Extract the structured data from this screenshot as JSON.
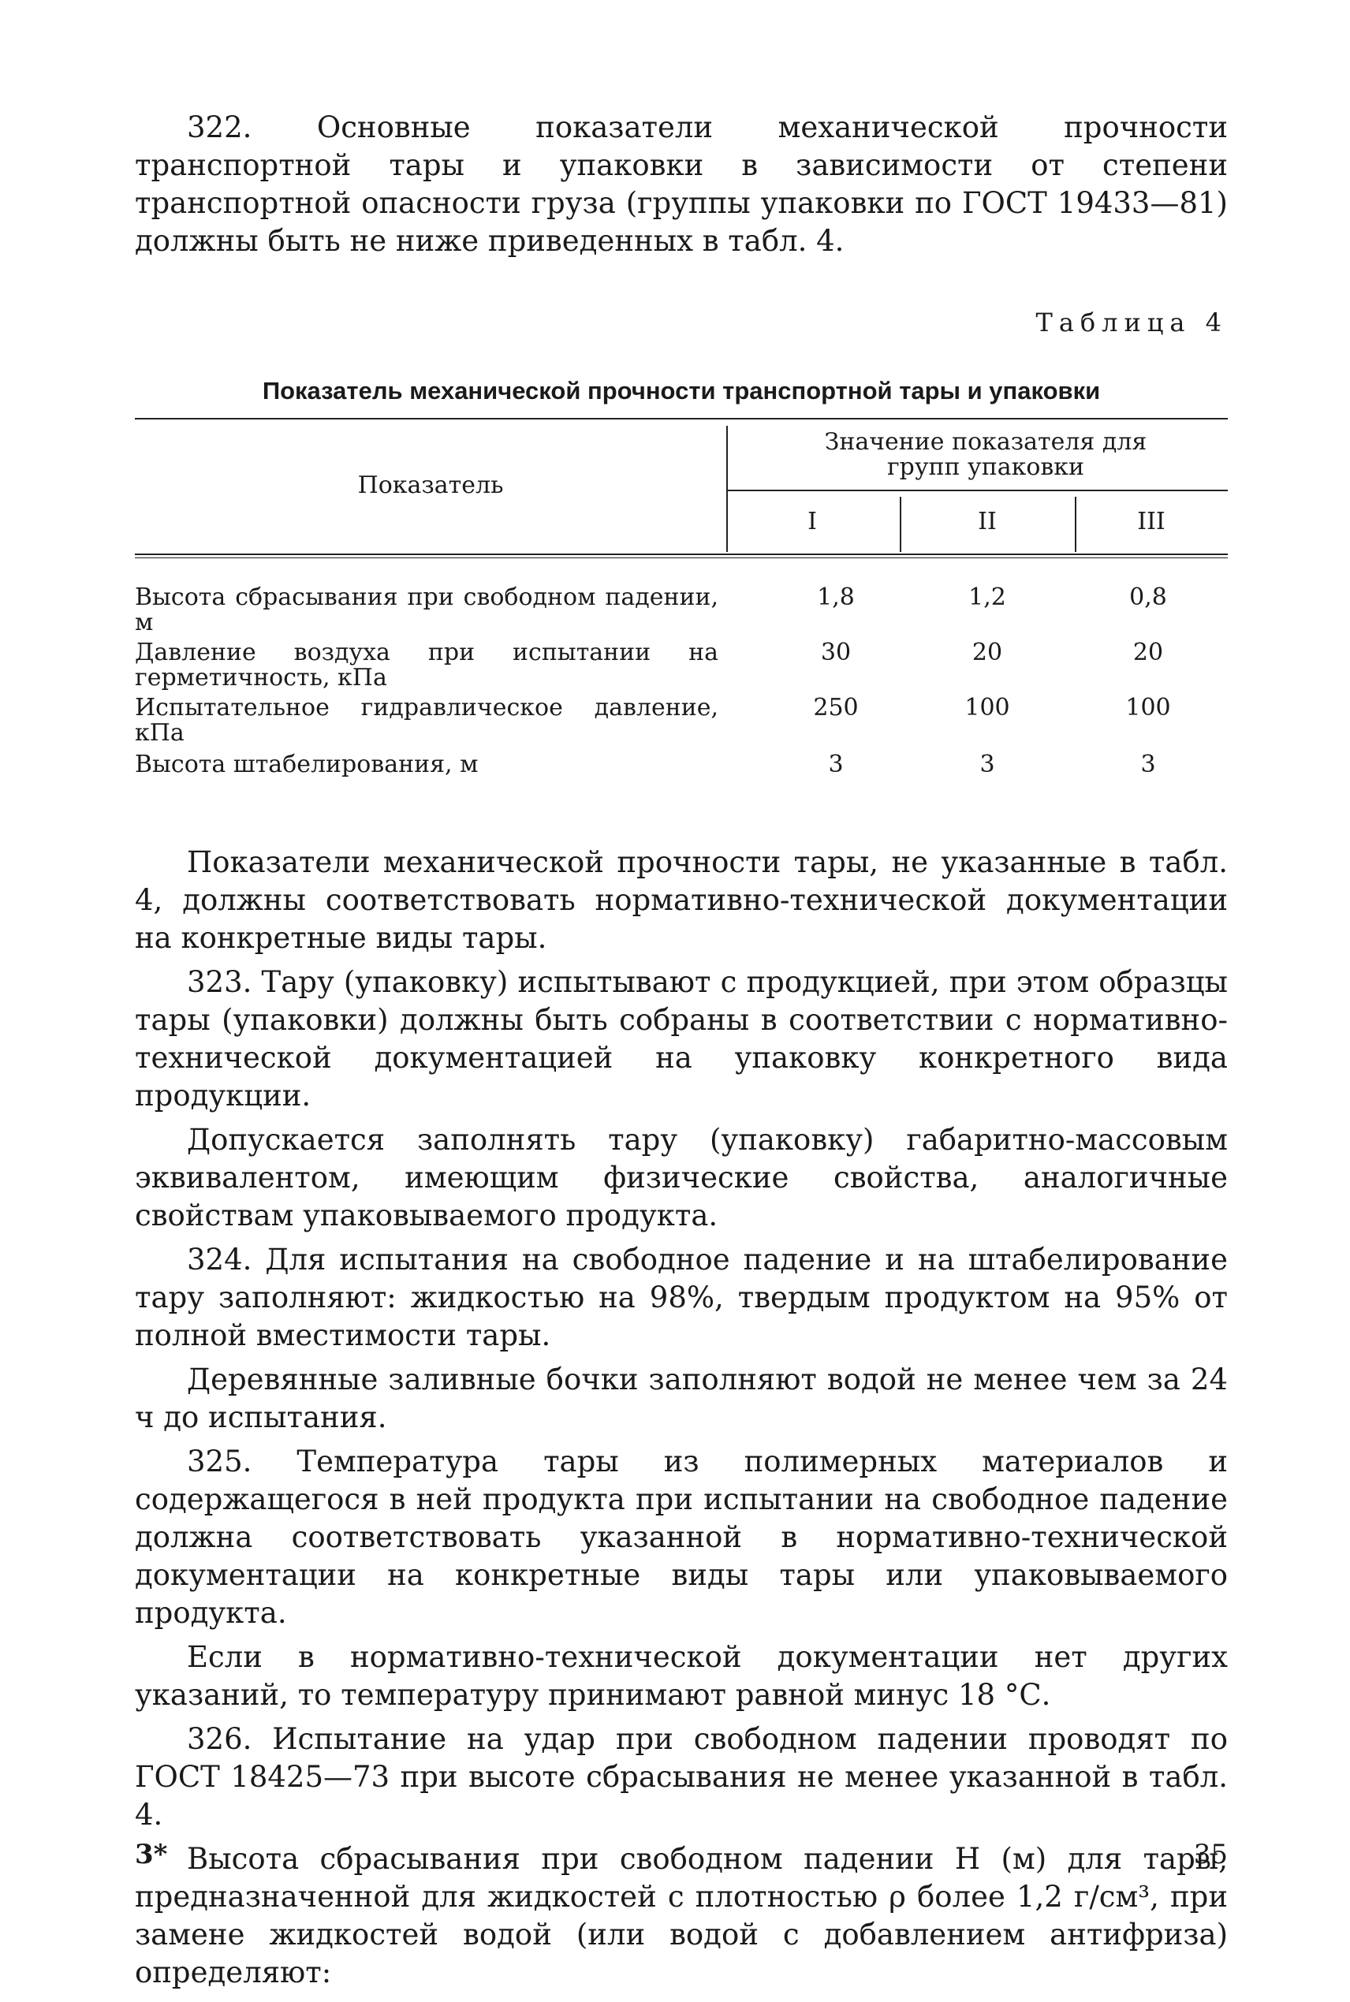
{
  "top_paragraph": "322. Основные показатели механической прочности транспортной тары и упаковки в зависимости от степени транспортной опасности груза (группы упаковки по ГОСТ 19433—81) должны быть не ниже приведенных в табл. 4.",
  "table": {
    "label": "Таблица 4",
    "title": "Показатель механической прочности транспортной тары и упаковки",
    "header": {
      "indicator": "Показатель",
      "group_header": "Значение показателя для групп упаковки",
      "groups": [
        "I",
        "II",
        "III"
      ]
    },
    "rows": [
      [
        "Высота сбрасывания при свободном падении, м",
        "1,8",
        "1,2",
        "0,8"
      ],
      [
        "Давление воздуха при испытании на герметичность, кПа",
        "30",
        "20",
        "20"
      ],
      [
        "Испытательное гидравлическое давление, кПа",
        "250",
        "100",
        "100"
      ],
      [
        "Высота штабелирования, м",
        "3",
        "3",
        "3"
      ]
    ]
  },
  "paragraphs": [
    "Показатели механической прочности тары, не указанные в табл. 4, должны соответствовать нормативно-технической документации на конкретные виды тары.",
    "323. Тару (упаковку) испытывают с продукцией, при этом образцы тары (упаковки) должны быть собраны в соответствии с нормативно-технической документацией на упаковку конкретного вида продукции.",
    "Допускается заполнять тару (упаковку) габаритно-массовым эквивалентом, имеющим физические свойства, аналогичные свойствам упаковываемого продукта.",
    "324. Для испытания на свободное падение и на штабелирование тару заполняют: жидкостью на 98%, твердым продуктом на 95% от полной вместимости тары.",
    "Деревянные заливные бочки заполняют водой не менее чем за 24 ч до испытания.",
    "325. Температура тары из полимерных материалов и содержащегося в ней продукта при испытании на свободное падение должна соответствовать указанной в нормативно-технической документации на конкретные виды тары или упаковываемого продукта.",
    "Если в нормативно-технической документации нет других указаний, то температуру принимают равной минус 18 °С.",
    "326. Испытание на удар при свободном падении проводят по ГОСТ 18425—73 при высоте сбрасывания не менее указанной в табл. 4.",
    "Высота сбрасывания при свободном падении H (м) для тары, предназначенной для жидкостей с плотностью ρ более 1,2 г/см³, при замене жидкостей водой (или водой с добавлением антифриза) определяют:"
  ],
  "footer": {
    "signature": "3*",
    "page_number": "35"
  }
}
